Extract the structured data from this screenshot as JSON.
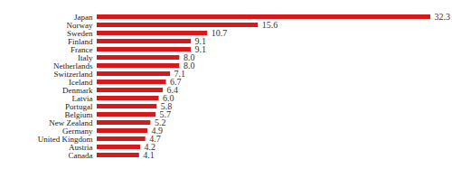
{
  "chart_data": {
    "type": "bar",
    "orientation": "horizontal",
    "categories": [
      "Japan",
      "Norway",
      "Sweden",
      "Finland",
      "France",
      "Italy",
      "Netherlands",
      "Switzerland",
      "Iceland",
      "Denmark",
      "Latvia",
      "Portugal",
      "Belgium",
      "New Zealand",
      "Germany",
      "United Kingdom",
      "Austria",
      "Canada"
    ],
    "values": [
      32.3,
      15.6,
      10.7,
      9.1,
      9.1,
      8.0,
      8.0,
      7.1,
      6.7,
      6.4,
      6.0,
      5.8,
      5.7,
      5.2,
      4.9,
      4.7,
      4.2,
      4.1
    ],
    "value_labels": [
      "32.3",
      "15.6",
      "10.7",
      "9.1",
      "9.1",
      "8.0",
      "8.0",
      "7.1",
      "6.7",
      "6.4",
      "6.0",
      "5.8",
      "5.7",
      "5.2",
      "4.9",
      "4.7",
      "4.2",
      "4.1"
    ],
    "color": "#d7191c",
    "xlim": [
      0,
      32.3
    ],
    "data_labels": true,
    "grid": false,
    "tick_labels": "y"
  }
}
